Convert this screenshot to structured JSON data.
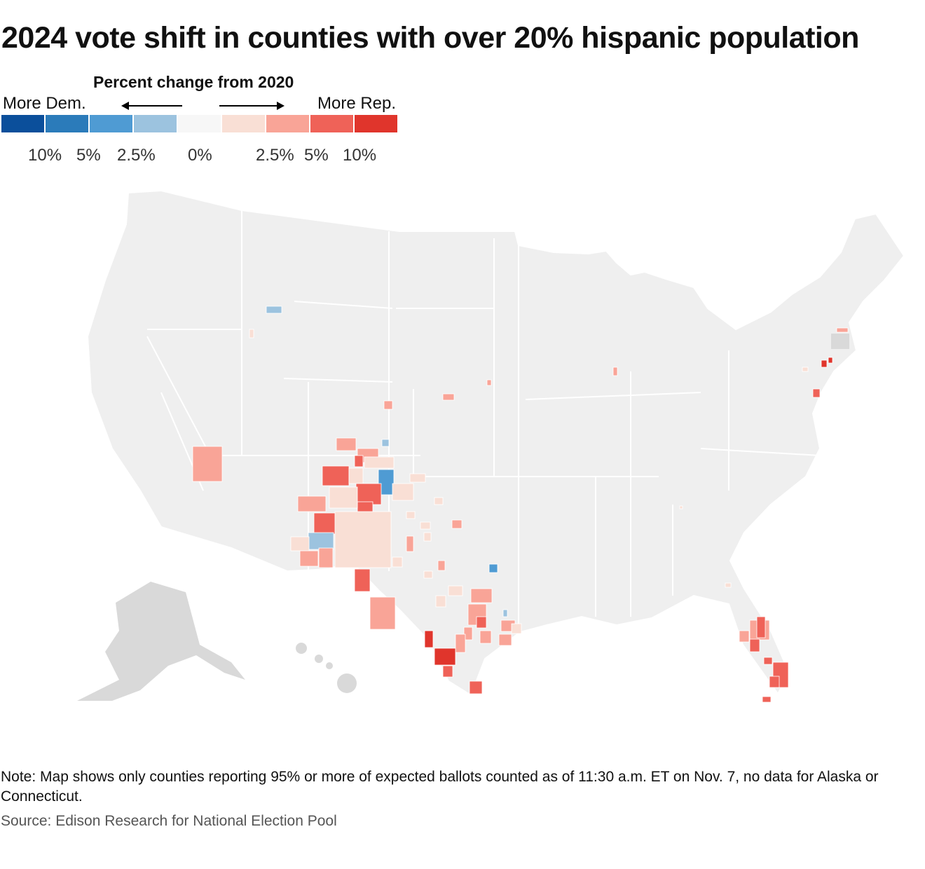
{
  "title": "2024 vote shift in counties with over 20% hispanic population",
  "legend": {
    "title": "Percent change from 2020",
    "left_label": "More Dem.",
    "right_label": "More Rep.",
    "colors": [
      "#0b4f9b",
      "#2b7bba",
      "#4f9bd3",
      "#9cc3df",
      "#f7f7f7",
      "#f9dfd5",
      "#f9a497",
      "#ef6258",
      "#e0352c"
    ],
    "ticks": [
      "10%",
      "5%",
      "2.5%",
      "0%",
      "2.5%",
      "5%",
      "10%"
    ]
  },
  "map": {
    "base_color": "#efefef",
    "no_data_color": "#d9d9d9",
    "border_color": "#ffffff"
  },
  "note": "Note: Map shows only counties reporting 95% or more of expected ballots counted as of 11:30 a.m. ET on Nov. 7, no data for Alaska or Connecticut.",
  "source": "Source: Edison Research for National Election Pool"
}
